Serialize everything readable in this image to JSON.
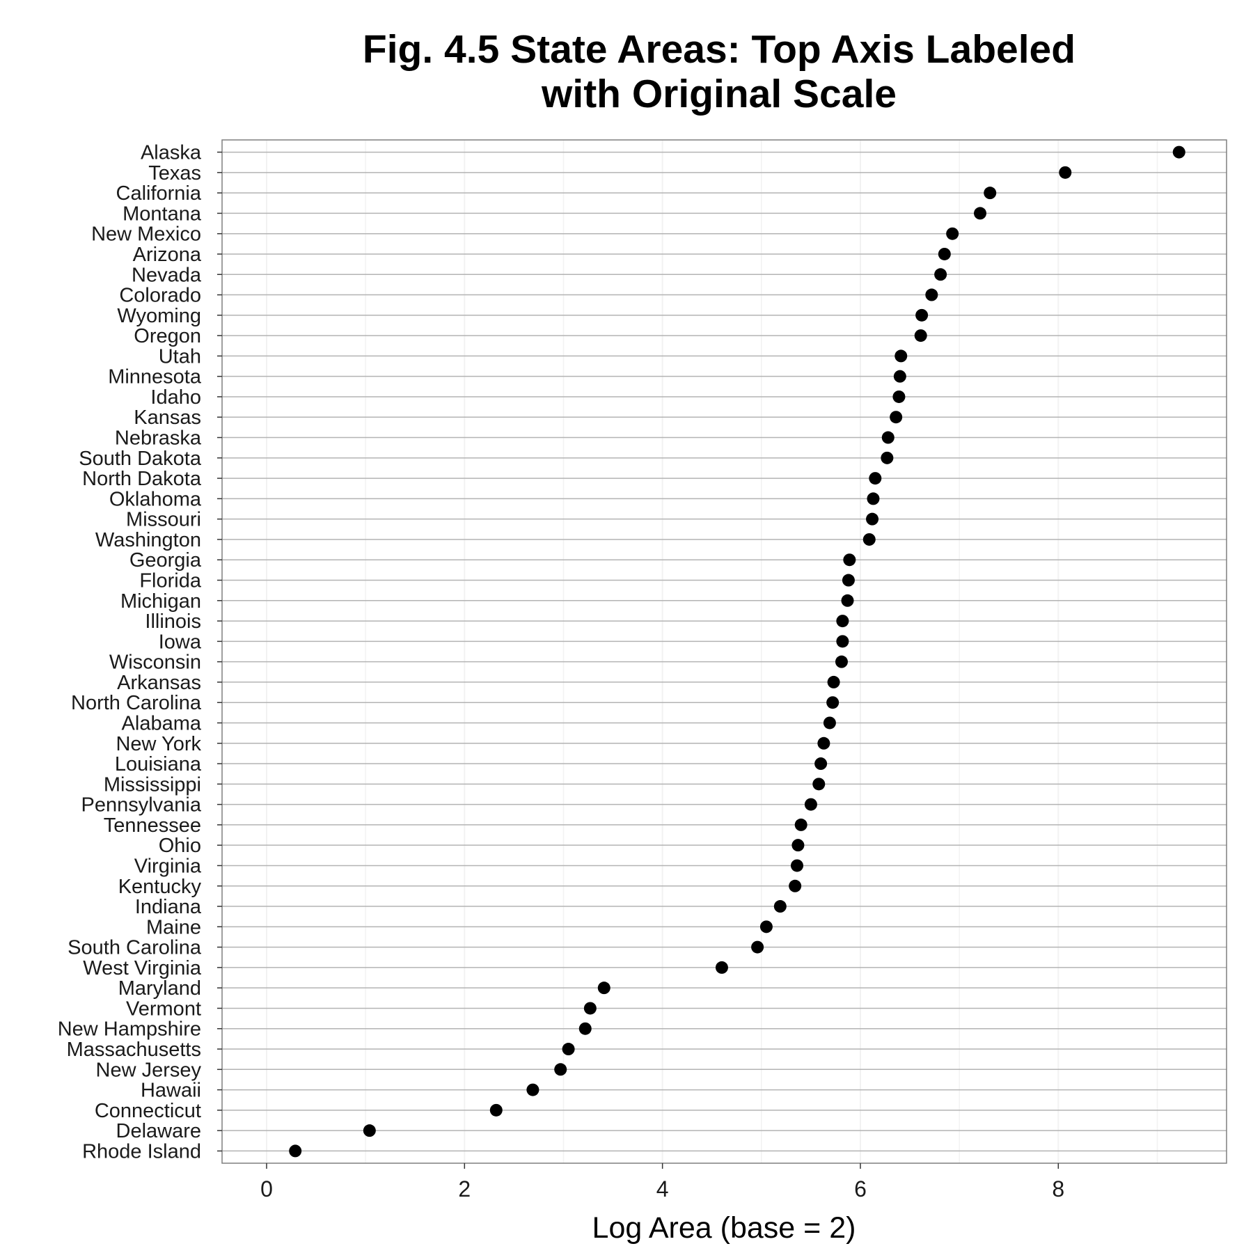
{
  "chart_data": {
    "type": "scatter",
    "title_lines": [
      "Fig. 4.5 State Areas: Top Axis Labeled",
      "with Original Scale"
    ],
    "xlabel": "Log Area (base = 2)",
    "ylabel": "",
    "xlim": [
      -0.45,
      9.7
    ],
    "x_ticks": [
      0,
      2,
      4,
      6,
      8
    ],
    "x_tick_labels": [
      "0",
      "2",
      "4",
      "6",
      "8"
    ],
    "grid": true,
    "legend": "none",
    "colors": {
      "point": "#000000",
      "gridline_major": "#b3b3b3",
      "gridline_minor": "#f2f2f2",
      "panel_border": "#7f7f7f",
      "background": "#ffffff"
    },
    "categories": [
      "Alaska",
      "Texas",
      "California",
      "Montana",
      "New Mexico",
      "Arizona",
      "Nevada",
      "Colorado",
      "Wyoming",
      "Oregon",
      "Utah",
      "Minnesota",
      "Idaho",
      "Kansas",
      "Nebraska",
      "South Dakota",
      "North Dakota",
      "Oklahoma",
      "Missouri",
      "Washington",
      "Georgia",
      "Florida",
      "Michigan",
      "Illinois",
      "Iowa",
      "Wisconsin",
      "Arkansas",
      "North Carolina",
      "Alabama",
      "New York",
      "Louisiana",
      "Mississippi",
      "Pennsylvania",
      "Tennessee",
      "Ohio",
      "Virginia",
      "Kentucky",
      "Indiana",
      "Maine",
      "South Carolina",
      "West Virginia",
      "Maryland",
      "Vermont",
      "New Hampshire",
      "Massachusetts",
      "New Jersey",
      "Hawaii",
      "Connecticut",
      "Delaware",
      "Rhode Island"
    ],
    "values": [
      9.22,
      8.07,
      7.31,
      7.21,
      6.93,
      6.85,
      6.81,
      6.72,
      6.62,
      6.61,
      6.41,
      6.4,
      6.39,
      6.36,
      6.28,
      6.27,
      6.15,
      6.13,
      6.12,
      6.09,
      5.89,
      5.88,
      5.87,
      5.82,
      5.82,
      5.81,
      5.73,
      5.72,
      5.69,
      5.63,
      5.6,
      5.58,
      5.5,
      5.4,
      5.37,
      5.36,
      5.34,
      5.19,
      5.05,
      4.96,
      4.6,
      3.41,
      3.27,
      3.22,
      3.05,
      2.97,
      2.69,
      2.32,
      1.04,
      0.29
    ]
  }
}
